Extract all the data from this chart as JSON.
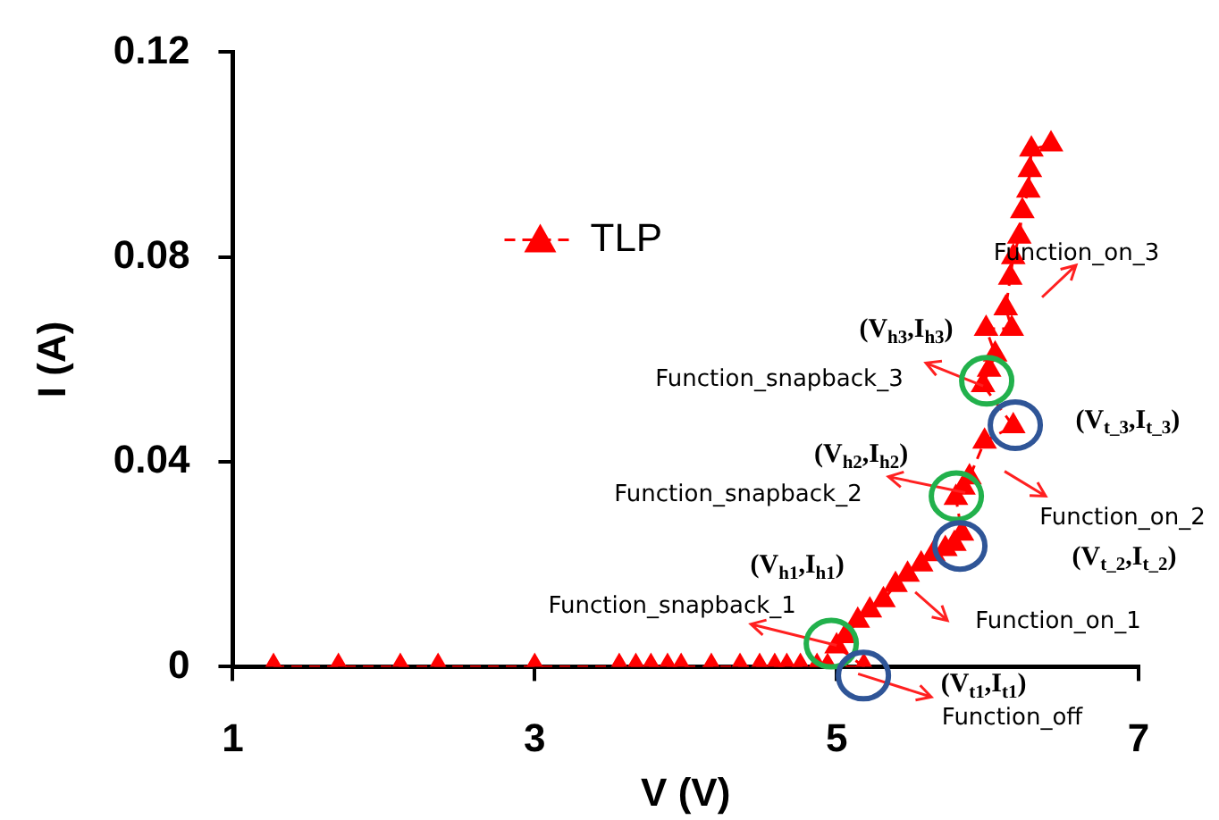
{
  "chart_data": {
    "type": "line",
    "xlabel": "V (V)",
    "ylabel": "I (A)",
    "xlim": [
      1,
      7
    ],
    "xticks": [
      1,
      3,
      5,
      7
    ],
    "ylim": [
      0,
      0.12
    ],
    "yticks": [
      0,
      0.04,
      0.08,
      0.12
    ],
    "grid": false,
    "legend": "top left",
    "marker": "triangle",
    "line_style": "dashed",
    "x": [
      1.27,
      1.7,
      2.11,
      2.36,
      3.0,
      3.56,
      3.67,
      3.77,
      3.88,
      3.97,
      4.17,
      4.36,
      4.49,
      4.59,
      4.67,
      4.76,
      4.87,
      4.94,
      5.18,
      5.0,
      5.06,
      5.14,
      5.22,
      5.31,
      5.39,
      5.47,
      5.56,
      5.64,
      5.72,
      5.78,
      5.83,
      5.79,
      5.84,
      5.88,
      5.98,
      6.17,
      5.97,
      6.01,
      6.05,
      5.99,
      6.16,
      6.12,
      6.15,
      6.17,
      6.21,
      6.23,
      6.27,
      6.28,
      6.29,
      6.42
    ],
    "series": [
      {
        "name": "TLP",
        "color": "#ff0000",
        "values": [
          0,
          0,
          0,
          0,
          0,
          0,
          0,
          0,
          0,
          0,
          0,
          0,
          0,
          0,
          0,
          0,
          0,
          0,
          0,
          0.004,
          0.006,
          0.009,
          0.011,
          0.013,
          0.016,
          0.018,
          0.02,
          0.022,
          0.023,
          0.024,
          0.026,
          0.033,
          0.035,
          0.037,
          0.044,
          0.047,
          0.055,
          0.058,
          0.061,
          0.066,
          0.066,
          0.07,
          0.076,
          0.08,
          0.084,
          0.089,
          0.093,
          0.097,
          0.101,
          0.102
        ]
      }
    ],
    "annotations": [
      {
        "text": "Function_on_3",
        "x": 6.15,
        "y": 0.076
      },
      {
        "text": "(V$_{h3}$,I$_{h3}$)",
        "x": 5.97,
        "y": 0.055
      },
      {
        "text": "Function_snapback_3",
        "x": 5.97,
        "y": 0.055
      },
      {
        "text": "(V$_{t_3}$,I$_{t_3}$)",
        "x": 6.17,
        "y": 0.047
      },
      {
        "text": "(V$_{h2}$,I$_{h2}$)",
        "x": 5.79,
        "y": 0.033
      },
      "Function_snapback_2",
      "Function_on_2",
      "(V$_{t_2}$,I$_{t_2}$)",
      {
        "text": "(V$_{h1}$,I$_{h1}$)",
        "x": 5.0,
        "y": 0.004
      },
      {
        "text": "Function_snapback_1",
        "x": 5.0,
        "y": 0.004
      },
      "Function_on_1",
      {
        "text": "(V$_{t1}$,I$_{t1}$)",
        "x": 5.18,
        "y": 0
      },
      {
        "text": "Function_off",
        "x": 5.18,
        "y": 0
      }
    ]
  }
}
